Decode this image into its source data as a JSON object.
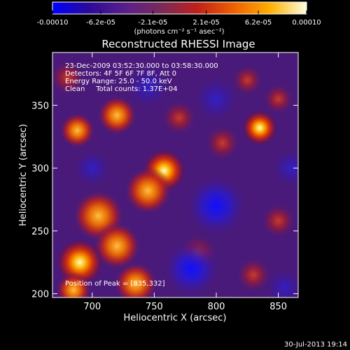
{
  "colorbar": {
    "ticks": [
      "-0.00010",
      "-6.2e-05",
      "-2.1e-05",
      "2.1e-05",
      "6.2e-05",
      "0.00010"
    ],
    "tick_values": [
      -0.0001,
      -6.2e-05,
      -2.1e-05,
      2.1e-05,
      6.2e-05,
      0.0001
    ],
    "range": [
      -0.0001,
      0.0001
    ],
    "units_label": "(photons cm⁻² s⁻¹ asec⁻²)",
    "colors": [
      "#0000ff",
      "#2b0a9a",
      "#5a1f8a",
      "#7a2a5a",
      "#c0201a",
      "#f06000",
      "#ffb000",
      "#ffffe0"
    ]
  },
  "chart_data": {
    "type": "heatmap",
    "title": "Reconstructed RHESSI Image",
    "xlabel": "Heliocentric X (arcsec)",
    "ylabel": "Heliocentric Y (arcsec)",
    "xlim": [
      668,
      866
    ],
    "ylim": [
      197,
      392
    ],
    "x_ticks": [
      700,
      750,
      800,
      850
    ],
    "y_ticks": [
      200,
      250,
      300,
      350
    ],
    "peak": [
      835,
      332
    ],
    "info_lines": [
      "23-Dec-2009 03:52:30.000 to 03:58:30.000",
      "Detectors: 4F 5F 6F 7F 8F, Att 0",
      "Energy Range: 25.0 - 50.0 keV",
      "Clean     Total counts: 1.37E+04"
    ],
    "peak_label": "Position of Peak = [835,332]",
    "blobs": [
      {
        "x": 835,
        "y": 332,
        "a": 1.0,
        "s": 9
      },
      {
        "x": 758,
        "y": 298,
        "a": 0.85,
        "s": 11
      },
      {
        "x": 745,
        "y": 282,
        "a": 0.75,
        "s": 12
      },
      {
        "x": 720,
        "y": 342,
        "a": 0.7,
        "s": 10
      },
      {
        "x": 688,
        "y": 330,
        "a": 0.7,
        "s": 9
      },
      {
        "x": 680,
        "y": 372,
        "a": 0.55,
        "s": 9
      },
      {
        "x": 705,
        "y": 262,
        "a": 0.8,
        "s": 13
      },
      {
        "x": 720,
        "y": 238,
        "a": 0.75,
        "s": 12
      },
      {
        "x": 690,
        "y": 225,
        "a": 0.85,
        "s": 12
      },
      {
        "x": 735,
        "y": 208,
        "a": 0.75,
        "s": 11
      },
      {
        "x": 685,
        "y": 203,
        "a": 0.7,
        "s": 9
      },
      {
        "x": 825,
        "y": 370,
        "a": 0.55,
        "s": 8
      },
      {
        "x": 850,
        "y": 355,
        "a": 0.5,
        "s": 8
      },
      {
        "x": 805,
        "y": 320,
        "a": 0.35,
        "s": 9
      },
      {
        "x": 850,
        "y": 258,
        "a": 0.45,
        "s": 9
      },
      {
        "x": 830,
        "y": 215,
        "a": 0.45,
        "s": 9
      },
      {
        "x": 785,
        "y": 232,
        "a": 0.4,
        "s": 10
      },
      {
        "x": 770,
        "y": 340,
        "a": 0.4,
        "s": 9
      },
      {
        "x": 800,
        "y": 270,
        "a": -0.6,
        "s": 16
      },
      {
        "x": 780,
        "y": 220,
        "a": -0.7,
        "s": 15
      },
      {
        "x": 800,
        "y": 355,
        "a": -0.4,
        "s": 12
      },
      {
        "x": 700,
        "y": 300,
        "a": -0.35,
        "s": 10
      },
      {
        "x": 745,
        "y": 365,
        "a": -0.3,
        "s": 12
      },
      {
        "x": 860,
        "y": 300,
        "a": -0.45,
        "s": 10
      },
      {
        "x": 855,
        "y": 205,
        "a": -0.4,
        "s": 10
      }
    ]
  },
  "timestamp": "30-Jul-2013 19:14"
}
